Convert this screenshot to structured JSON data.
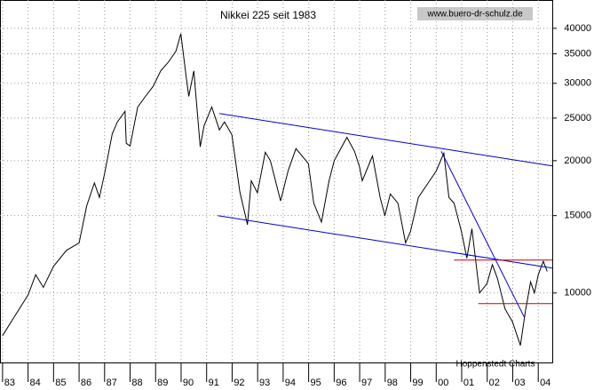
{
  "chart_data": {
    "type": "line",
    "title": "Nikkei 225 seit 1983",
    "source": "www.buero-dr-schulz.de",
    "credit": "Hoppenstedt Charts",
    "log_y": true,
    "grid": true,
    "color": "#000000",
    "x": [
      1983.0,
      1983.5,
      1984.0,
      1984.3,
      1984.6,
      1985.0,
      1985.5,
      1986.0,
      1986.3,
      1986.6,
      1986.8,
      1987.0,
      1987.3,
      1987.5,
      1987.8,
      1987.85,
      1988.0,
      1988.3,
      1988.6,
      1988.9,
      1989.2,
      1989.5,
      1989.8,
      1989.99,
      1990.2,
      1990.3,
      1990.5,
      1990.75,
      1990.9,
      1991.2,
      1991.5,
      1991.7,
      1991.99,
      1992.3,
      1992.6,
      1992.75,
      1992.99,
      1993.3,
      1993.5,
      1993.9,
      1994.2,
      1994.5,
      1994.99,
      1995.2,
      1995.5,
      1995.8,
      1996.0,
      1996.5,
      1996.8,
      1996.99,
      1997.1,
      1997.5,
      1997.8,
      1997.99,
      1998.2,
      1998.5,
      1998.8,
      1998.99,
      1999.3,
      1999.6,
      1999.99,
      2000.3,
      2000.5,
      2000.7,
      2000.99,
      2001.2,
      2001.4,
      2001.7,
      2001.99,
      2002.2,
      2002.4,
      2002.7,
      2002.99,
      2003.3,
      2003.5,
      2003.7,
      2003.85,
      2004.0,
      2004.2,
      2004.35
    ],
    "values": [
      8000,
      8900,
      9900,
      11000,
      10300,
      11500,
      12500,
      13000,
      15800,
      17800,
      16500,
      18700,
      23000,
      24500,
      25900,
      21900,
      21600,
      26500,
      28000,
      29500,
      32000,
      33500,
      35500,
      38900,
      31000,
      28000,
      32000,
      21500,
      24000,
      26500,
      23500,
      24500,
      22900,
      17000,
      14300,
      18000,
      16900,
      20900,
      20000,
      16200,
      19000,
      21300,
      19700,
      16000,
      14500,
      18000,
      20000,
      22600,
      21000,
      19400,
      18000,
      20500,
      16500,
      15000,
      16800,
      16000,
      13000,
      13800,
      16500,
      17500,
      18900,
      20800,
      16500,
      16000,
      13800,
      12000,
      14000,
      10000,
      10500,
      11600,
      10800,
      9200,
      8600,
      7600,
      9100,
      10600,
      10000,
      11000,
      11800,
      11200
    ],
    "lines": [
      {
        "x": [
          1991.5,
          2004.55
        ],
        "values": [
          25600,
          19450
        ],
        "color": "#0000cc"
      },
      {
        "x": [
          1991.44,
          2004.55
        ],
        "values": [
          14990,
          11390
        ],
        "color": "#0000cc"
      },
      {
        "x": [
          2000.2,
          2003.45
        ],
        "values": [
          21000,
          8820
        ],
        "color": "#0000cc"
      },
      {
        "x": [
          2000.7,
          2004.55
        ],
        "values": [
          11880,
          11880
        ],
        "color": "#cc0000"
      },
      {
        "x": [
          2001.65,
          2004.55
        ],
        "values": [
          9460,
          9460
        ],
        "color": "#cc0000"
      }
    ],
    "xlim": [
      1982.9,
      2004.55
    ],
    "ylim": [
      6950,
      46400
    ],
    "xticks": [
      {
        "value": 1983,
        "label": "83"
      },
      {
        "value": 1984,
        "label": "84"
      },
      {
        "value": 1985,
        "label": "85"
      },
      {
        "value": 1986,
        "label": "86"
      },
      {
        "value": 1987,
        "label": "87"
      },
      {
        "value": 1988,
        "label": "88"
      },
      {
        "value": 1989,
        "label": "89"
      },
      {
        "value": 1990,
        "label": "90"
      },
      {
        "value": 1991,
        "label": "91"
      },
      {
        "value": 1992,
        "label": "92"
      },
      {
        "value": 1993,
        "label": "93"
      },
      {
        "value": 1994,
        "label": "94"
      },
      {
        "value": 1995,
        "label": "95"
      },
      {
        "value": 1996,
        "label": "96"
      },
      {
        "value": 1997,
        "label": "97"
      },
      {
        "value": 1998,
        "label": "98"
      },
      {
        "value": 1999,
        "label": "99"
      },
      {
        "value": 2000,
        "label": "00"
      },
      {
        "value": 2001,
        "label": "01"
      },
      {
        "value": 2002,
        "label": "02"
      },
      {
        "value": 2003,
        "label": "03"
      },
      {
        "value": 2004,
        "label": "04"
      }
    ],
    "yticks": [
      10000,
      15000,
      20000,
      25000,
      30000,
      35000,
      40000
    ]
  }
}
